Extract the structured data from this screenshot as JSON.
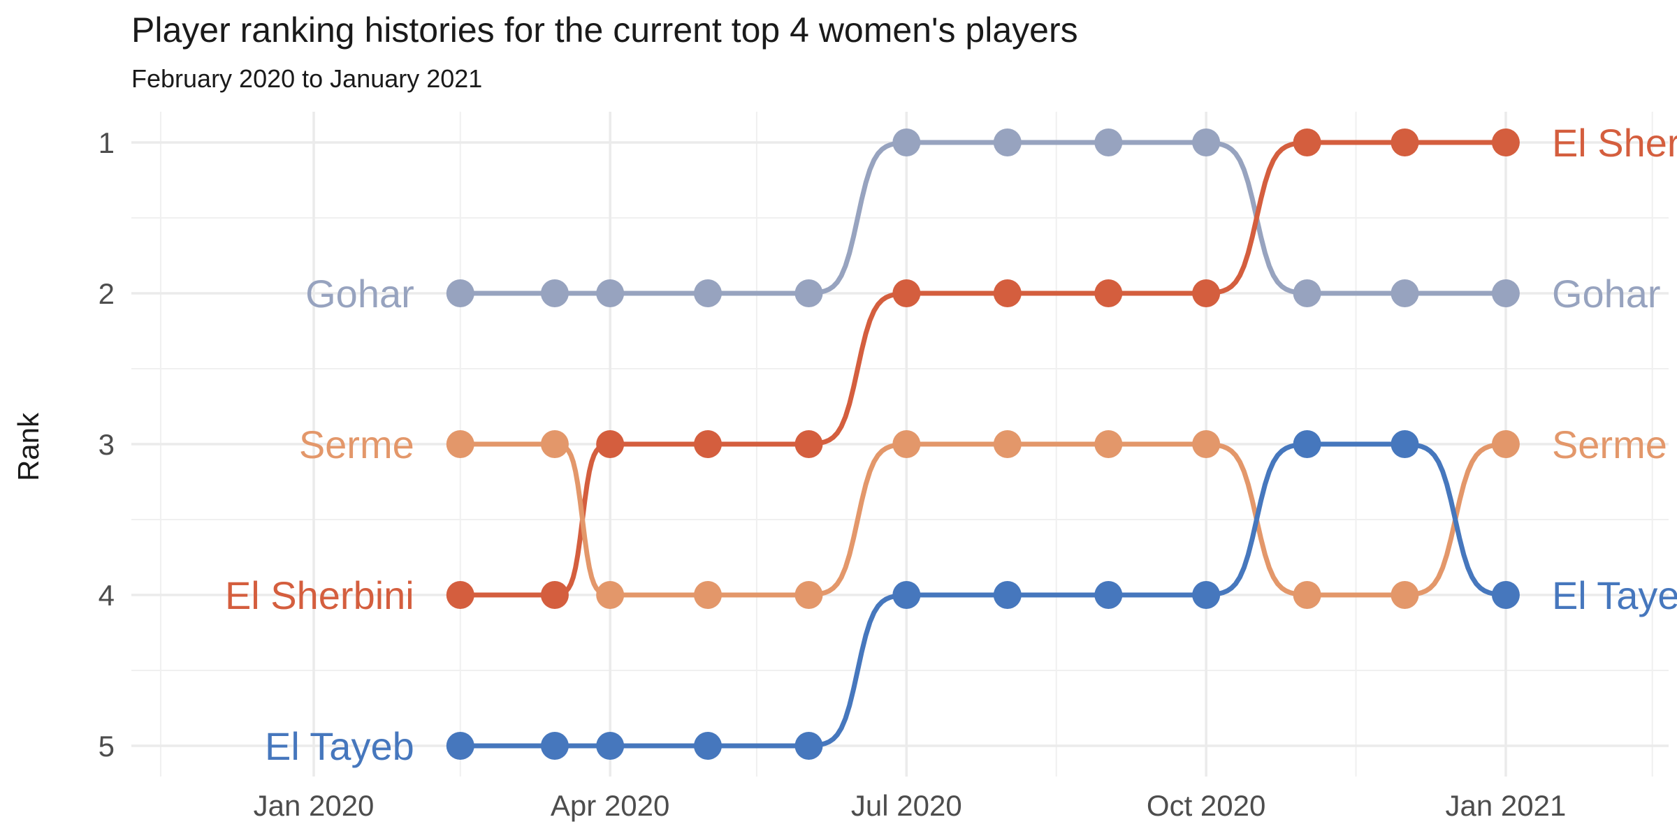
{
  "chart_data": {
    "type": "line",
    "title": "Player ranking histories for the current top 4 women's players",
    "subtitle": "February 2020 to January 2021",
    "xlabel": "",
    "ylabel": "Rank",
    "ylim": [
      5,
      1
    ],
    "y_reversed": true,
    "xlim": [
      "2019-11-06",
      "2021-02-20"
    ],
    "grid": true,
    "legend": "none (labels at line ends)",
    "x_ticks": [
      {
        "date": "2020-01-01",
        "label": "Jan 2020"
      },
      {
        "date": "2020-04-01",
        "label": "Apr 2020"
      },
      {
        "date": "2020-07-01",
        "label": "Jul 2020"
      },
      {
        "date": "2020-10-01",
        "label": "Oct 2020"
      },
      {
        "date": "2021-01-01",
        "label": "Jan 2021"
      }
    ],
    "x_minor_gridlines": [
      "2019-11-15",
      "2020-02-15",
      "2020-05-16",
      "2020-08-16",
      "2020-11-16",
      "2021-02-15"
    ],
    "y_ticks": [
      1,
      2,
      3,
      4,
      5
    ],
    "x": [
      "2020-02-15",
      "2020-03-15",
      "2020-04-01",
      "2020-05-01",
      "2020-06-01",
      "2020-07-01",
      "2020-08-01",
      "2020-09-01",
      "2020-10-01",
      "2020-11-01",
      "2020-12-01",
      "2021-01-01"
    ],
    "series": [
      {
        "name": "Gohar",
        "color": "#97A3BF",
        "values": [
          2,
          2,
          2,
          2,
          2,
          1,
          1,
          1,
          1,
          2,
          2,
          2
        ]
      },
      {
        "name": "El Sherbini",
        "color": "#D45E3E",
        "values": [
          4,
          4,
          3,
          3,
          3,
          2,
          2,
          2,
          2,
          1,
          1,
          1
        ]
      },
      {
        "name": "Serme",
        "color": "#E3976A",
        "values": [
          3,
          3,
          4,
          4,
          4,
          3,
          3,
          3,
          3,
          4,
          4,
          3
        ]
      },
      {
        "name": "El Tayeb",
        "color": "#4677BD",
        "values": [
          5,
          5,
          5,
          5,
          5,
          4,
          4,
          4,
          4,
          3,
          3,
          4
        ]
      }
    ]
  }
}
